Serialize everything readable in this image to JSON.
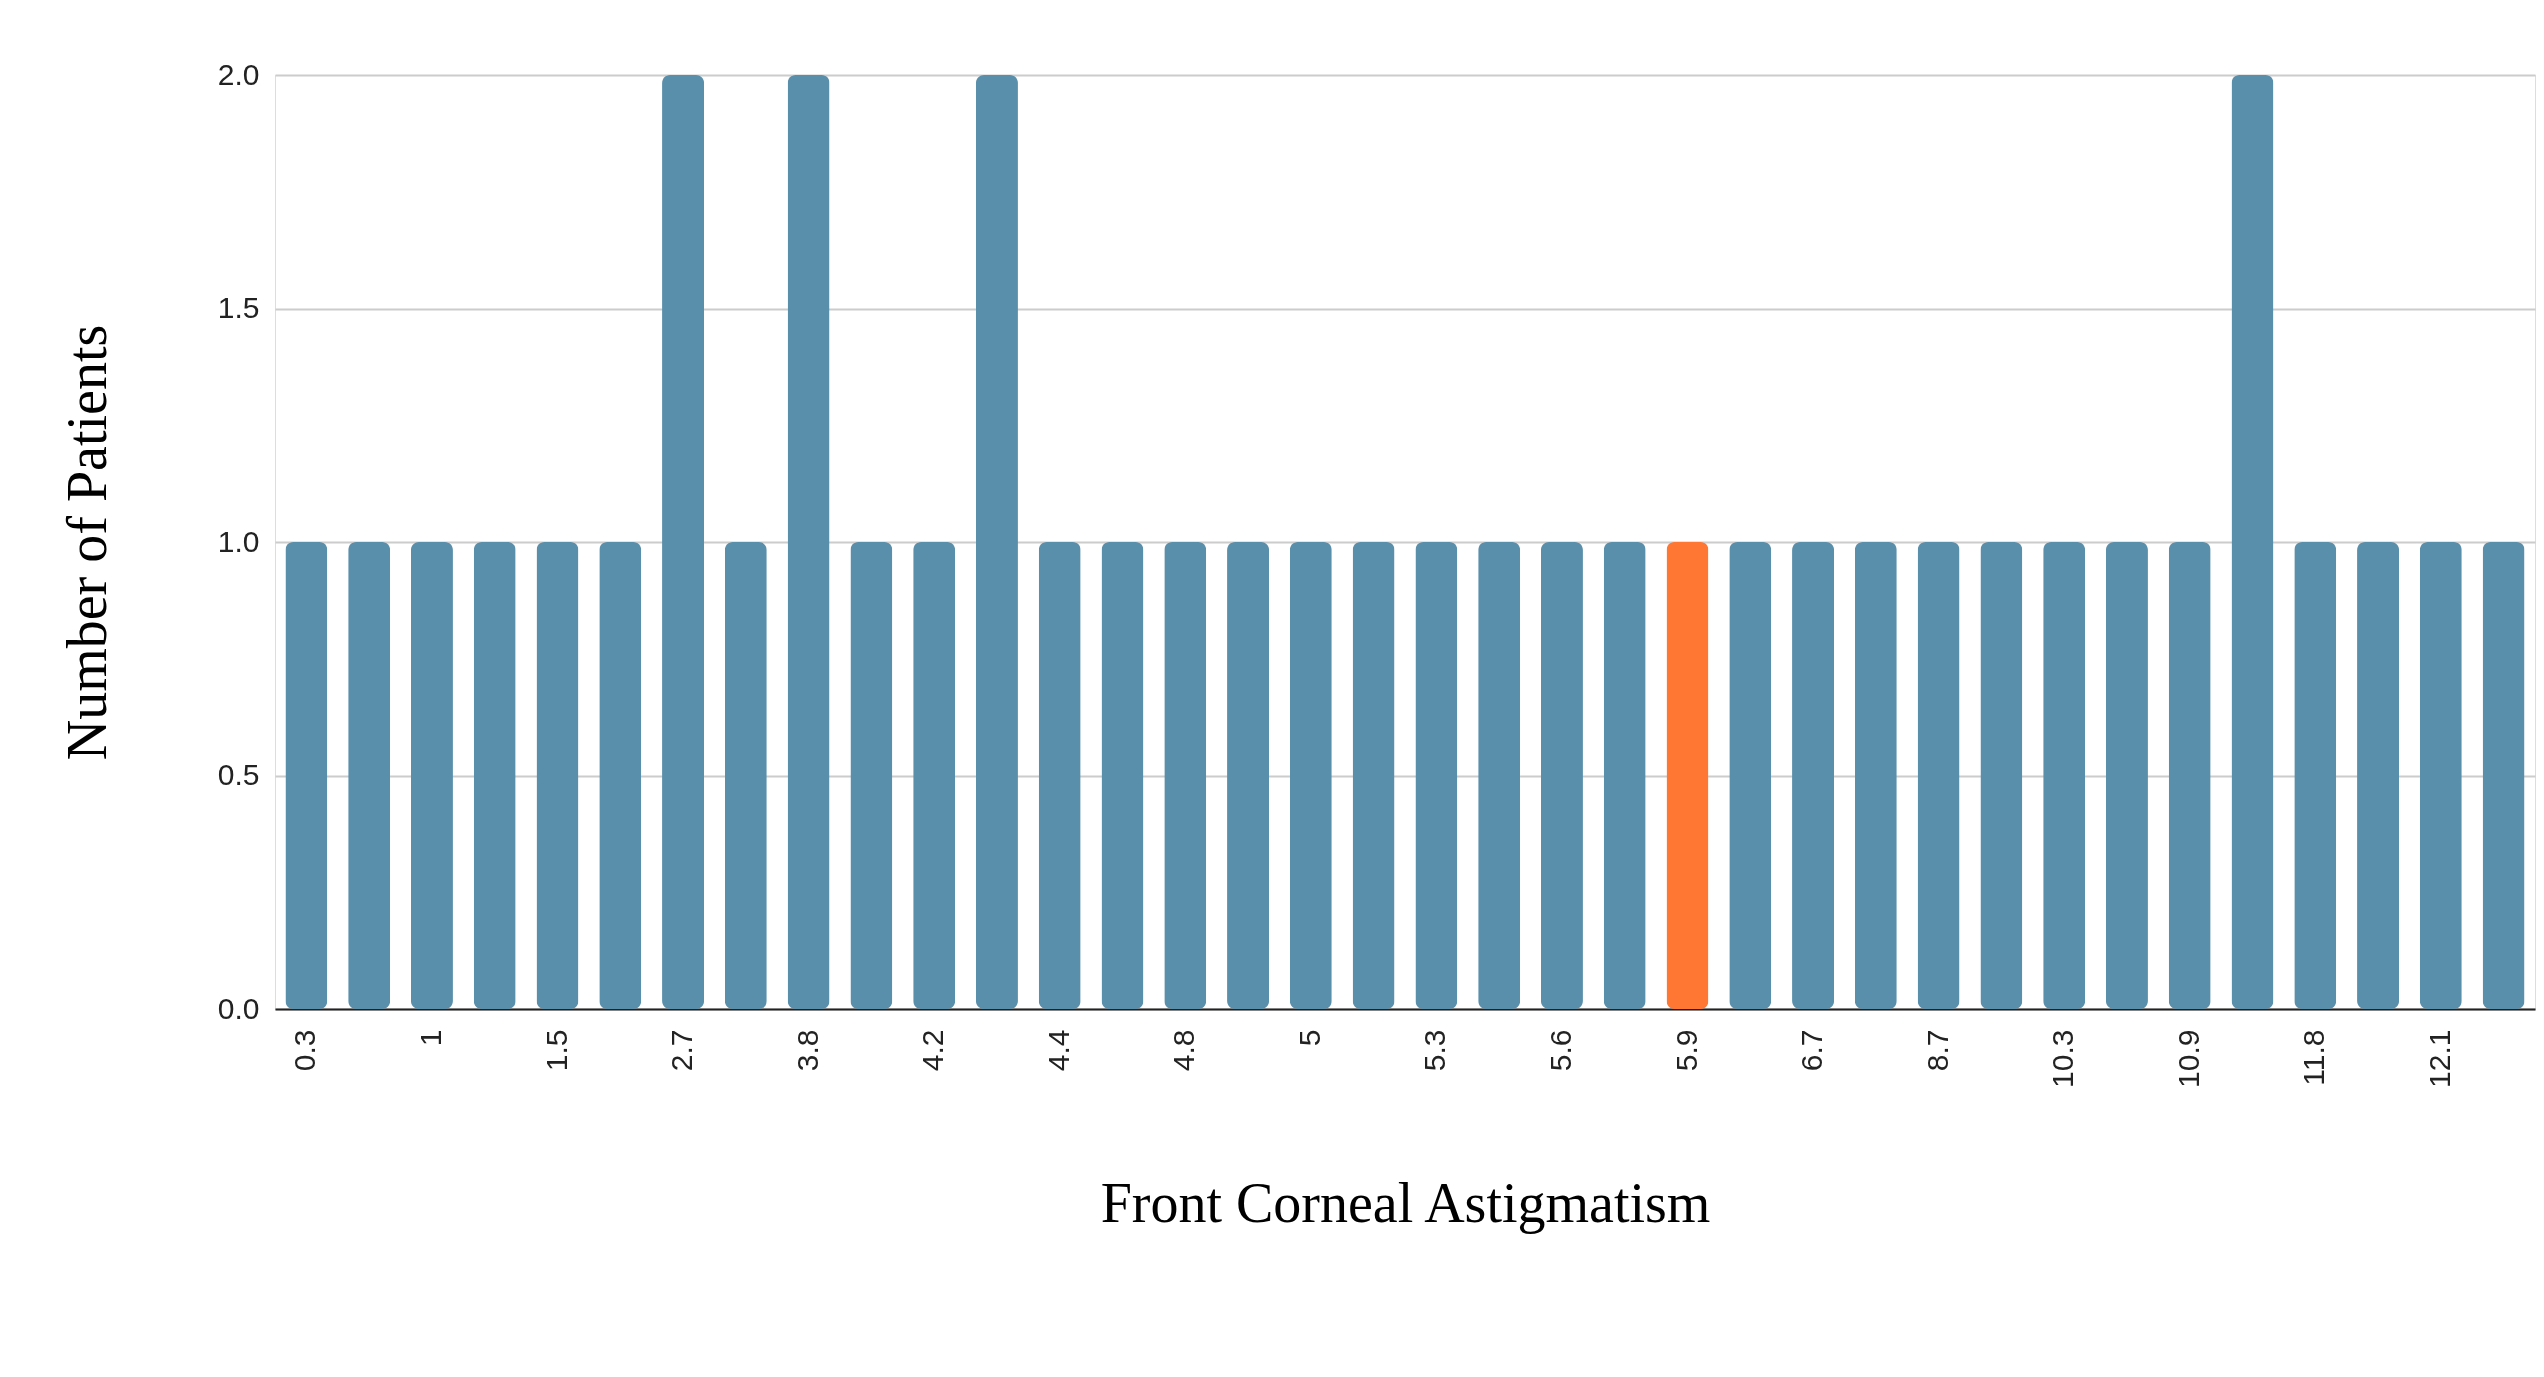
{
  "chart_data": {
    "type": "bar",
    "xlabel": "Front Corneal Astigmatism",
    "ylabel": "Number of Patients",
    "categories": [
      "0.3",
      null,
      "1",
      null,
      "1.5",
      null,
      "2.7",
      null,
      "3.8",
      null,
      "4.2",
      null,
      "4.4",
      null,
      "4.8",
      null,
      "5",
      null,
      "5.3",
      null,
      "5.6",
      null,
      "5.9",
      null,
      "6.7",
      null,
      "8.7",
      null,
      "10.3",
      null,
      "10.9",
      null,
      "11.8",
      null,
      "12.1",
      null
    ],
    "values": [
      1,
      1,
      1,
      1,
      1,
      1,
      2,
      1,
      2,
      1,
      1,
      2,
      1,
      1,
      1,
      1,
      1,
      1,
      1,
      1,
      1,
      1,
      1,
      1,
      1,
      1,
      1,
      1,
      1,
      1,
      1,
      2,
      1,
      1,
      1,
      1
    ],
    "colors": [
      "#5a8fab",
      "#5a8fab",
      "#5a8fab",
      "#5a8fab",
      "#5a8fab",
      "#5a8fab",
      "#5a8fab",
      "#5a8fab",
      "#5a8fab",
      "#5a8fab",
      "#5a8fab",
      "#5a8fab",
      "#5a8fab",
      "#5a8fab",
      "#5a8fab",
      "#5a8fab",
      "#5a8fab",
      "#5a8fab",
      "#5a8fab",
      "#5a8fab",
      "#5a8fab",
      "#5a8fab",
      "#ff7733",
      "#5a8fab",
      "#5a8fab",
      "#5a8fab",
      "#5a8fab",
      "#5a8fab",
      "#5a8fab",
      "#5a8fab",
      "#5a8fab",
      "#5a8fab",
      "#5a8fab",
      "#5a8fab",
      "#5a8fab",
      "#5a8fab"
    ],
    "ylim": [
      0,
      2
    ],
    "yticks": [
      {
        "value": 0,
        "label": "0.0"
      },
      0.5,
      {
        "value": 1,
        "label": "1.0"
      },
      1.5,
      {
        "value": 2,
        "label": "2.0"
      }
    ],
    "grid": "y"
  }
}
